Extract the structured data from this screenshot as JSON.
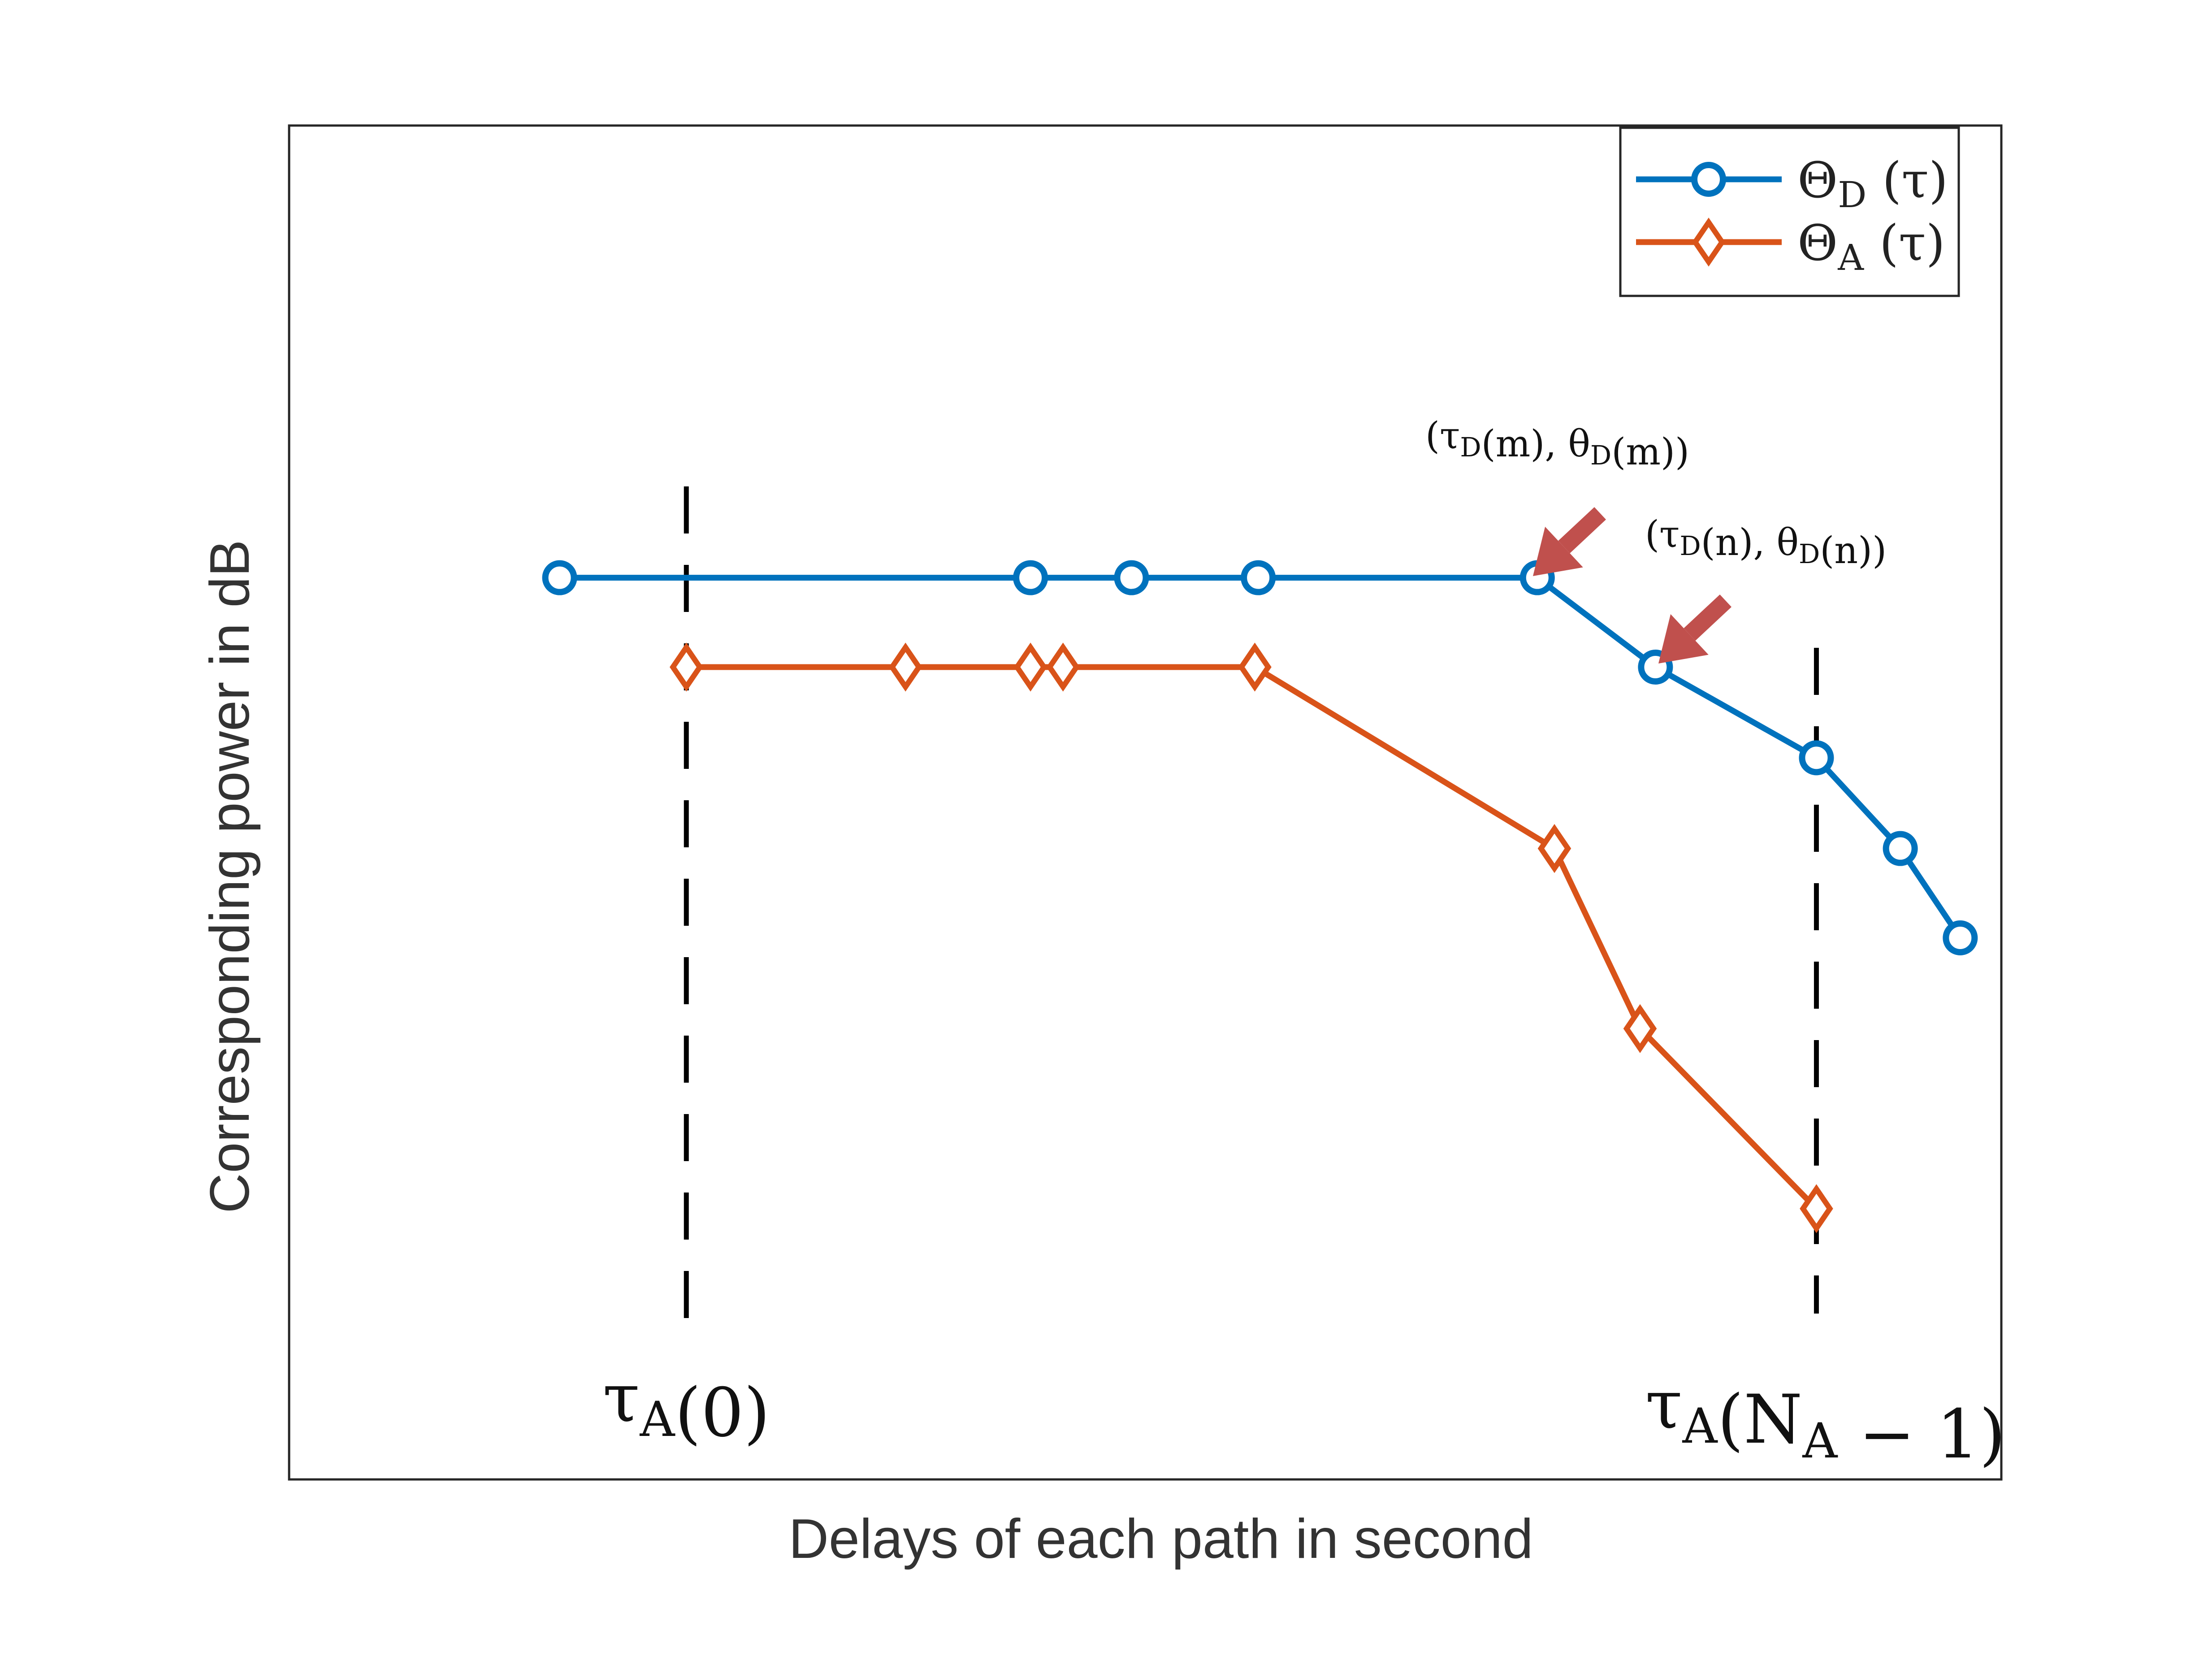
{
  "chart_data": {
    "type": "line",
    "title": "",
    "xlabel": "Delays of each path in second",
    "ylabel": "Corresponding power in dB",
    "xlim": [
      0,
      100
    ],
    "ylim": [
      0,
      100
    ],
    "grid": false,
    "show_ticks": false,
    "legend": "top-right",
    "series": [
      {
        "name": "Θ_D (τ)",
        "color": "#0072BD",
        "marker": "circle",
        "x": [
          15.8,
          43.3,
          49.2,
          56.6,
          72.9,
          79.8,
          89.2,
          94.1,
          97.6
        ],
        "y": [
          66.6,
          66.6,
          66.6,
          66.6,
          66.6,
          60.0,
          53.3,
          46.6,
          40.0
        ]
      },
      {
        "name": "Θ_A (τ)",
        "color": "#D95319",
        "marker": "diamond",
        "x": [
          23.2,
          36.0,
          43.3,
          45.2,
          56.4,
          73.9,
          78.9,
          89.2
        ],
        "y": [
          60.0,
          60.0,
          60.0,
          60.0,
          60.0,
          46.6,
          33.3,
          20.0
        ]
      }
    ],
    "annotations": {
      "point_m": "(τ_D(m), θ_D(m))",
      "point_n": "(τ_D(n), θ_D(n))",
      "arrow_color": "#C0504D",
      "vline_left": {
        "x": 23.2,
        "label": "τ_A(0)"
      },
      "vline_right": {
        "x": 89.2,
        "label": "τ_A(N_A − 1)"
      }
    }
  }
}
